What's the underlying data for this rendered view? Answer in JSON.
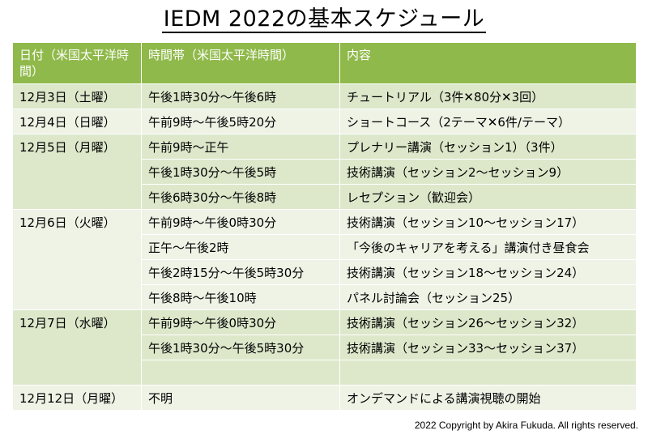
{
  "title": "IEDM 2022の基本スケジュール",
  "table": {
    "headers": [
      "日付（米国太平洋時間）",
      "時間帯（米国太平洋時間）",
      "内容"
    ],
    "groups": [
      {
        "date": "12月3日（土曜）",
        "rows": [
          {
            "time": "午後1時30分～午後6時",
            "content": "チュートリアル（3件✕80分✕3回）"
          }
        ]
      },
      {
        "date": "12月4日（日曜）",
        "rows": [
          {
            "time": "午前9時～午後5時20分",
            "content": "ショートコース（2テーマ✕6件/テーマ）"
          }
        ]
      },
      {
        "date": "12月5日（月曜）",
        "rows": [
          {
            "time": "午前9時～正午",
            "content": "プレナリー講演（セッション1）（3件）"
          },
          {
            "time": "午後1時30分～午後5時",
            "content": "技術講演（セッション2～セッション9）"
          },
          {
            "time": "午後6時30分～午後8時",
            "content": "レセプション（歓迎会）"
          }
        ]
      },
      {
        "date": "12月6日（火曜）",
        "rows": [
          {
            "time": "午前9時～午後0時30分",
            "content": "技術講演（セッション10～セッション17）"
          },
          {
            "time": "正午～午後2時",
            "content": "「今後のキャリアを考える」講演付き昼食会"
          },
          {
            "time": "午後2時15分～午後5時30分",
            "content": "技術講演（セッション18～セッション24）"
          },
          {
            "time": "午後8時～午後10時",
            "content": "パネル討論会（セッション25）"
          }
        ]
      },
      {
        "date": "12月7日（水曜）",
        "rows": [
          {
            "time": "午前9時～午後0時30分",
            "content": "技術講演（セッション26～セッション32）"
          },
          {
            "time": "午後1時30分～午後5時30分",
            "content": "技術講演（セッション33～セッション37）"
          },
          {
            "time": "",
            "content": ""
          }
        ]
      },
      {
        "date": "12月12日（月曜）",
        "rows": [
          {
            "time": "不明",
            "content": "オンデマンドによる講演視聴の開始"
          }
        ]
      }
    ]
  },
  "copyright": "2022 Copyright by Akira Fukuda. All rights reserved.",
  "colors": {
    "header": "#8fb94a",
    "row_odd": "#dde8cb",
    "row_even": "#eef3e6"
  }
}
